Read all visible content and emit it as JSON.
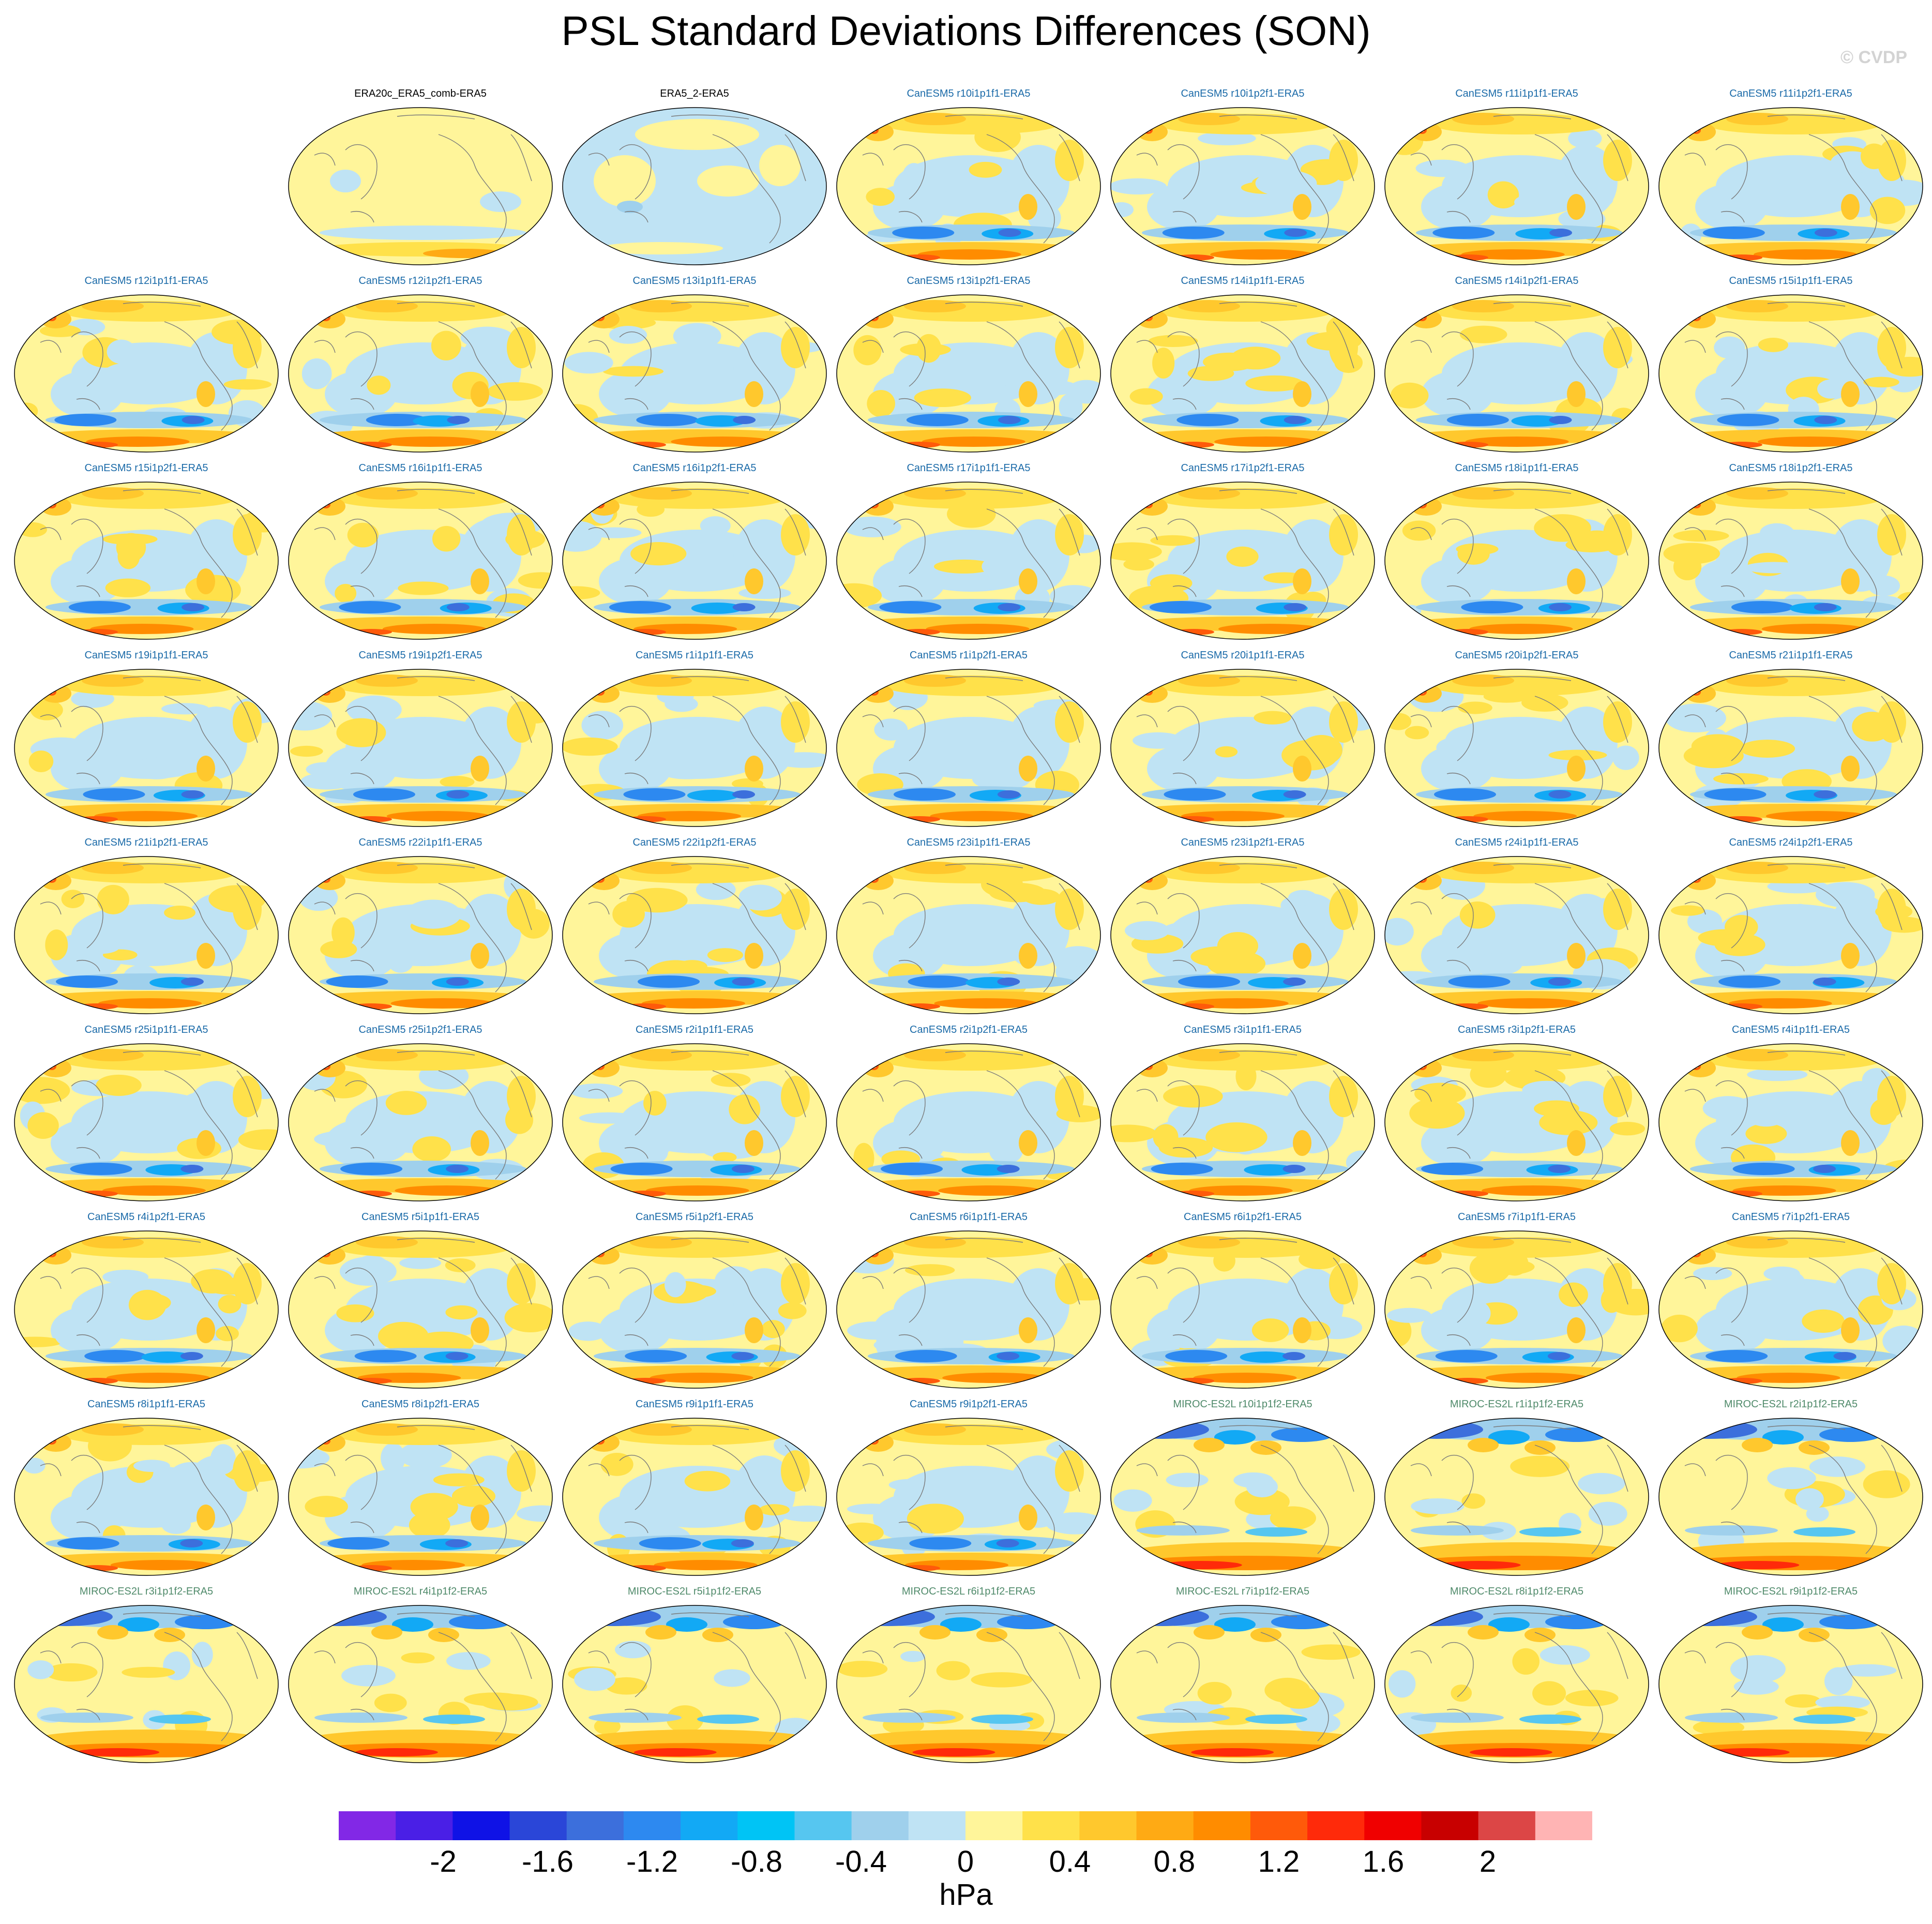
{
  "title": "PSL Standard Deviations Differences (SON)",
  "watermark": "© CVDP",
  "chart_data": {
    "type": "heatmap",
    "title": "PSL Standard Deviations Differences (SON)",
    "variable": "PSL",
    "season": "SON",
    "projection": "Robinson global map",
    "panels": [
      {
        "label": "ERA20c_ERA5_comb-ERA5",
        "group": "obs",
        "color": "#000000"
      },
      {
        "label": "ERA5_2-ERA5",
        "group": "obs",
        "color": "#000000"
      },
      {
        "label": "CanESM5 r10i1p1f1-ERA5",
        "group": "CanESM5",
        "color": "#1a6aa8"
      },
      {
        "label": "CanESM5 r10i1p2f1-ERA5",
        "group": "CanESM5",
        "color": "#1a6aa8"
      },
      {
        "label": "CanESM5 r11i1p1f1-ERA5",
        "group": "CanESM5",
        "color": "#1a6aa8"
      },
      {
        "label": "CanESM5 r11i1p2f1-ERA5",
        "group": "CanESM5",
        "color": "#1a6aa8"
      },
      {
        "label": "CanESM5 r12i1p1f1-ERA5",
        "group": "CanESM5",
        "color": "#1a6aa8"
      },
      {
        "label": "CanESM5 r12i1p2f1-ERA5",
        "group": "CanESM5",
        "color": "#1a6aa8"
      },
      {
        "label": "CanESM5 r13i1p1f1-ERA5",
        "group": "CanESM5",
        "color": "#1a6aa8"
      },
      {
        "label": "CanESM5 r13i1p2f1-ERA5",
        "group": "CanESM5",
        "color": "#1a6aa8"
      },
      {
        "label": "CanESM5 r14i1p1f1-ERA5",
        "group": "CanESM5",
        "color": "#1a6aa8"
      },
      {
        "label": "CanESM5 r14i1p2f1-ERA5",
        "group": "CanESM5",
        "color": "#1a6aa8"
      },
      {
        "label": "CanESM5 r15i1p1f1-ERA5",
        "group": "CanESM5",
        "color": "#1a6aa8"
      },
      {
        "label": "CanESM5 r15i1p2f1-ERA5",
        "group": "CanESM5",
        "color": "#1a6aa8"
      },
      {
        "label": "CanESM5 r16i1p1f1-ERA5",
        "group": "CanESM5",
        "color": "#1a6aa8"
      },
      {
        "label": "CanESM5 r16i1p2f1-ERA5",
        "group": "CanESM5",
        "color": "#1a6aa8"
      },
      {
        "label": "CanESM5 r17i1p1f1-ERA5",
        "group": "CanESM5",
        "color": "#1a6aa8"
      },
      {
        "label": "CanESM5 r17i1p2f1-ERA5",
        "group": "CanESM5",
        "color": "#1a6aa8"
      },
      {
        "label": "CanESM5 r18i1p1f1-ERA5",
        "group": "CanESM5",
        "color": "#1a6aa8"
      },
      {
        "label": "CanESM5 r18i1p2f1-ERA5",
        "group": "CanESM5",
        "color": "#1a6aa8"
      },
      {
        "label": "CanESM5 r19i1p1f1-ERA5",
        "group": "CanESM5",
        "color": "#1a6aa8"
      },
      {
        "label": "CanESM5 r19i1p2f1-ERA5",
        "group": "CanESM5",
        "color": "#1a6aa8"
      },
      {
        "label": "CanESM5 r1i1p1f1-ERA5",
        "group": "CanESM5",
        "color": "#1a6aa8"
      },
      {
        "label": "CanESM5 r1i1p2f1-ERA5",
        "group": "CanESM5",
        "color": "#1a6aa8"
      },
      {
        "label": "CanESM5 r20i1p1f1-ERA5",
        "group": "CanESM5",
        "color": "#1a6aa8"
      },
      {
        "label": "CanESM5 r20i1p2f1-ERA5",
        "group": "CanESM5",
        "color": "#1a6aa8"
      },
      {
        "label": "CanESM5 r21i1p1f1-ERA5",
        "group": "CanESM5",
        "color": "#1a6aa8"
      },
      {
        "label": "CanESM5 r21i1p2f1-ERA5",
        "group": "CanESM5",
        "color": "#1a6aa8"
      },
      {
        "label": "CanESM5 r22i1p1f1-ERA5",
        "group": "CanESM5",
        "color": "#1a6aa8"
      },
      {
        "label": "CanESM5 r22i1p2f1-ERA5",
        "group": "CanESM5",
        "color": "#1a6aa8"
      },
      {
        "label": "CanESM5 r23i1p1f1-ERA5",
        "group": "CanESM5",
        "color": "#1a6aa8"
      },
      {
        "label": "CanESM5 r23i1p2f1-ERA5",
        "group": "CanESM5",
        "color": "#1a6aa8"
      },
      {
        "label": "CanESM5 r24i1p1f1-ERA5",
        "group": "CanESM5",
        "color": "#1a6aa8"
      },
      {
        "label": "CanESM5 r24i1p2f1-ERA5",
        "group": "CanESM5",
        "color": "#1a6aa8"
      },
      {
        "label": "CanESM5 r25i1p1f1-ERA5",
        "group": "CanESM5",
        "color": "#1a6aa8"
      },
      {
        "label": "CanESM5 r25i1p2f1-ERA5",
        "group": "CanESM5",
        "color": "#1a6aa8"
      },
      {
        "label": "CanESM5 r2i1p1f1-ERA5",
        "group": "CanESM5",
        "color": "#1a6aa8"
      },
      {
        "label": "CanESM5 r2i1p2f1-ERA5",
        "group": "CanESM5",
        "color": "#1a6aa8"
      },
      {
        "label": "CanESM5 r3i1p1f1-ERA5",
        "group": "CanESM5",
        "color": "#1a6aa8"
      },
      {
        "label": "CanESM5 r3i1p2f1-ERA5",
        "group": "CanESM5",
        "color": "#1a6aa8"
      },
      {
        "label": "CanESM5 r4i1p1f1-ERA5",
        "group": "CanESM5",
        "color": "#1a6aa8"
      },
      {
        "label": "CanESM5 r4i1p2f1-ERA5",
        "group": "CanESM5",
        "color": "#1a6aa8"
      },
      {
        "label": "CanESM5 r5i1p1f1-ERA5",
        "group": "CanESM5",
        "color": "#1a6aa8"
      },
      {
        "label": "CanESM5 r5i1p2f1-ERA5",
        "group": "CanESM5",
        "color": "#1a6aa8"
      },
      {
        "label": "CanESM5 r6i1p1f1-ERA5",
        "group": "CanESM5",
        "color": "#1a6aa8"
      },
      {
        "label": "CanESM5 r6i1p2f1-ERA5",
        "group": "CanESM5",
        "color": "#1a6aa8"
      },
      {
        "label": "CanESM5 r7i1p1f1-ERA5",
        "group": "CanESM5",
        "color": "#1a6aa8"
      },
      {
        "label": "CanESM5 r7i1p2f1-ERA5",
        "group": "CanESM5",
        "color": "#1a6aa8"
      },
      {
        "label": "CanESM5 r8i1p1f1-ERA5",
        "group": "CanESM5",
        "color": "#1a6aa8"
      },
      {
        "label": "CanESM5 r8i1p2f1-ERA5",
        "group": "CanESM5",
        "color": "#1a6aa8"
      },
      {
        "label": "CanESM5 r9i1p1f1-ERA5",
        "group": "CanESM5",
        "color": "#1a6aa8"
      },
      {
        "label": "CanESM5 r9i1p2f1-ERA5",
        "group": "CanESM5",
        "color": "#1a6aa8"
      },
      {
        "label": "MIROC-ES2L r10i1p1f2-ERA5",
        "group": "MIROC-ES2L",
        "color": "#4f8a6a"
      },
      {
        "label": "MIROC-ES2L r1i1p1f2-ERA5",
        "group": "MIROC-ES2L",
        "color": "#4f8a6a"
      },
      {
        "label": "MIROC-ES2L r2i1p1f2-ERA5",
        "group": "MIROC-ES2L",
        "color": "#4f8a6a"
      },
      {
        "label": "MIROC-ES2L r3i1p1f2-ERA5",
        "group": "MIROC-ES2L",
        "color": "#4f8a6a"
      },
      {
        "label": "MIROC-ES2L r4i1p1f2-ERA5",
        "group": "MIROC-ES2L",
        "color": "#4f8a6a"
      },
      {
        "label": "MIROC-ES2L r5i1p1f2-ERA5",
        "group": "MIROC-ES2L",
        "color": "#4f8a6a"
      },
      {
        "label": "MIROC-ES2L r6i1p1f2-ERA5",
        "group": "MIROC-ES2L",
        "color": "#4f8a6a"
      },
      {
        "label": "MIROC-ES2L r7i1p1f2-ERA5",
        "group": "MIROC-ES2L",
        "color": "#4f8a6a"
      },
      {
        "label": "MIROC-ES2L r8i1p1f2-ERA5",
        "group": "MIROC-ES2L",
        "color": "#4f8a6a"
      },
      {
        "label": "MIROC-ES2L r9i1p1f2-ERA5",
        "group": "MIROC-ES2L",
        "color": "#4f8a6a"
      }
    ],
    "colorbar": {
      "units": "hPa",
      "ticks": [
        "-2",
        "-1.6",
        "-1.2",
        "-0.8",
        "-0.4",
        "0",
        "0.4",
        "0.8",
        "1.2",
        "1.6",
        "2"
      ],
      "tick_values": [
        -2,
        -1.6,
        -1.2,
        -0.8,
        -0.4,
        0,
        0.4,
        0.8,
        1.2,
        1.6,
        2
      ],
      "range": [
        -2.4,
        2.4
      ],
      "colors": [
        "#8228e6",
        "#4a1fe6",
        "#0f12e6",
        "#2a46d8",
        "#3c6fdc",
        "#2d89f0",
        "#12a9f5",
        "#00c4f5",
        "#56c6f0",
        "#9fd0ec",
        "#bfe3f4",
        "#fff59a",
        "#ffe14a",
        "#ffc82d",
        "#ffaa14",
        "#ff8c00",
        "#ff5a0a",
        "#ff2a0a",
        "#f00000",
        "#c80000",
        "#dc4646",
        "#ffb4b4"
      ]
    }
  }
}
